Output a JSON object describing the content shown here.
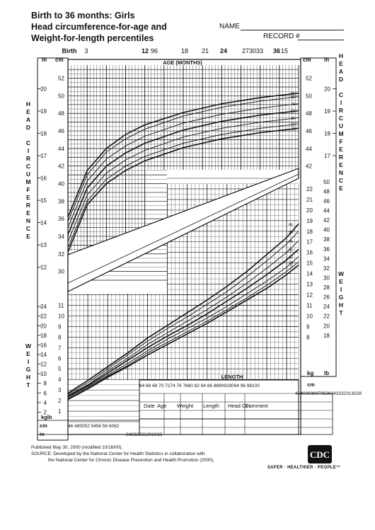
{
  "header": {
    "title_lines": [
      "Birth to 36 months: Girls",
      "Head circumference-for-age and",
      "Weight-for-length percentiles"
    ],
    "name_label": "NAME",
    "record_label": "RECORD #"
  },
  "axes": {
    "age_title": "AGE (MONTHS)",
    "age_ticks": [
      {
        "label": "Birth",
        "bold": true
      },
      {
        "label": "3",
        "bold": false
      },
      {
        "label": "12",
        "bold": true
      },
      {
        "label": "96",
        "bold": false
      },
      {
        "label": "18",
        "bold": false
      },
      {
        "label": "21",
        "bold": false
      },
      {
        "label": "24",
        "bold": true
      },
      {
        "label": "273033",
        "bold": false
      },
      {
        "label": "36",
        "bold": true
      },
      {
        "label": "15",
        "bold": false
      }
    ],
    "length_title": "LENGTH",
    "length_ticks_text": "64 66 68 70 7274 76 7880 82 84 86 8890929094 96 98100",
    "length_unit_cm": "cm",
    "length_in_text": "41403938373536343332313028",
    "bottom_cm_text": "46 485052 5456 58 6062",
    "bottom_in_text": "2423222120191B",
    "head_left_title": "HEAD CIRCUMFERENCE",
    "head_right_title": "HEAD CIRCUMFERENCE",
    "weight_left_title": "WEIGHT",
    "weight_right_title": "WEIGHT",
    "unit_in": "in",
    "unit_cm": "cm",
    "unit_kg": "kg",
    "unit_lb": "lb",
    "kg_lb_label": "kglb",
    "hc_cm_left": [
      "52",
      "50",
      "48",
      "46",
      "44",
      "42",
      "40",
      "38",
      "36",
      "34",
      "32",
      "30"
    ],
    "hc_in_left": [
      "20",
      "19",
      "18",
      "17",
      "16",
      "15",
      "14",
      "13",
      "12"
    ],
    "hc_cm_right": [
      "52",
      "50",
      "48",
      "46",
      "44",
      "42"
    ],
    "hc_in_right": [
      "20",
      "19",
      "18",
      "17"
    ],
    "wt_kg_right": [
      "22",
      "21",
      "20",
      "19",
      "18",
      "17",
      "16",
      "15",
      "14",
      "13",
      "12",
      "11",
      "10",
      "9",
      "8"
    ],
    "wt_lb_right": [
      "50",
      "48",
      "46",
      "44",
      "42",
      "40",
      "38",
      "36",
      "34",
      "32",
      "30",
      "28",
      "26",
      "24",
      "22",
      "20",
      "18"
    ],
    "wt_kg_left": [
      "11",
      "10",
      "9",
      "8",
      "7",
      "6",
      "5",
      "4",
      "3",
      "2",
      "1"
    ],
    "wt_lb_left": [
      "24",
      "22",
      "20",
      "18",
      "16",
      "14",
      "12",
      "10",
      "8",
      "6",
      "4",
      "2"
    ]
  },
  "table": {
    "headers": [
      "Date",
      "Age",
      "Weight",
      "Length",
      "Head Circ.",
      "Comment"
    ]
  },
  "footer": {
    "lines": [
      "Published May 30, 2000 (modified 10/16/00).",
      "SOURCE: Developed by the National Center for Health Statistics in collaboration with",
      "the National Center for Chronic Disease Prevention and Health Promotion (2000)."
    ],
    "logo_text": "CDC",
    "tagline": "SAFER · HEALTHIER · PEOPLE™"
  },
  "chart_data": [
    {
      "type": "line",
      "name_in_source": "Head circumference-for-age",
      "x_unit": "months",
      "x": [
        0,
        3,
        6,
        9,
        12,
        18,
        24,
        30,
        36
      ],
      "xlim": [
        0,
        36
      ],
      "ylim": [
        29,
        53.5
      ],
      "series": [
        {
          "name": "95",
          "values": [
            36.2,
            41.5,
            44.0,
            45.6,
            46.7,
            48.1,
            49.1,
            49.8,
            50.3
          ]
        },
        {
          "name": "90",
          "values": [
            35.7,
            41.0,
            43.6,
            45.1,
            46.2,
            47.7,
            48.7,
            49.4,
            49.9
          ]
        },
        {
          "name": "75",
          "values": [
            35.0,
            40.3,
            42.8,
            44.3,
            45.4,
            46.9,
            47.9,
            48.6,
            49.1
          ]
        },
        {
          "name": "50",
          "values": [
            34.2,
            39.5,
            42.0,
            43.5,
            44.6,
            46.1,
            47.1,
            47.8,
            48.3
          ]
        },
        {
          "name": "25",
          "values": [
            33.4,
            38.7,
            41.2,
            42.7,
            43.8,
            45.3,
            46.3,
            47.0,
            47.5
          ]
        },
        {
          "name": "10",
          "values": [
            32.7,
            38.0,
            40.5,
            42.0,
            43.1,
            44.6,
            45.6,
            46.3,
            46.8
          ]
        },
        {
          "name": "5",
          "values": [
            32.2,
            37.6,
            40.0,
            41.5,
            42.6,
            44.1,
            45.1,
            45.8,
            46.3
          ]
        }
      ]
    },
    {
      "type": "line",
      "name_in_source": "Weight-for-length",
      "x_unit": "cm",
      "x": [
        45,
        50,
        55,
        60,
        65,
        70,
        75,
        80,
        85,
        90,
        95,
        100,
        103
      ],
      "xlim": [
        45,
        103
      ],
      "ylim": [
        0,
        23
      ],
      "series": [
        {
          "name": "95",
          "values": [
            2.7,
            3.9,
            5.2,
            6.5,
            7.9,
            9.1,
            10.3,
            11.5,
            12.8,
            14.2,
            15.8,
            17.4,
            18.7
          ]
        },
        {
          "name": "90",
          "values": [
            2.6,
            3.7,
            5.0,
            6.3,
            7.6,
            8.8,
            9.9,
            11.1,
            12.3,
            13.7,
            15.2,
            16.8,
            18.0
          ]
        },
        {
          "name": "75",
          "values": [
            2.5,
            3.5,
            4.8,
            6.0,
            7.3,
            8.4,
            9.5,
            10.6,
            11.8,
            13.1,
            14.5,
            16.0,
            17.1
          ]
        },
        {
          "name": "50",
          "values": [
            2.4,
            3.4,
            4.6,
            5.8,
            7.0,
            8.1,
            9.1,
            10.2,
            11.4,
            12.6,
            13.9,
            15.3,
            16.3
          ]
        },
        {
          "name": "25",
          "values": [
            2.3,
            3.3,
            4.4,
            5.5,
            6.7,
            7.8,
            8.8,
            9.8,
            10.9,
            12.1,
            13.3,
            14.6,
            15.6
          ]
        },
        {
          "name": "10",
          "values": [
            2.2,
            3.2,
            4.3,
            5.3,
            6.5,
            7.5,
            8.5,
            9.5,
            10.6,
            11.7,
            12.9,
            14.2,
            15.1
          ]
        },
        {
          "name": "5",
          "values": [
            2.1,
            3.1,
            4.2,
            5.2,
            6.3,
            7.3,
            8.3,
            9.3,
            10.4,
            11.5,
            12.6,
            13.9,
            14.8
          ]
        }
      ]
    }
  ],
  "colors": {
    "ink": "#111111",
    "grid": "#333333",
    "paper": "#ffffff"
  }
}
